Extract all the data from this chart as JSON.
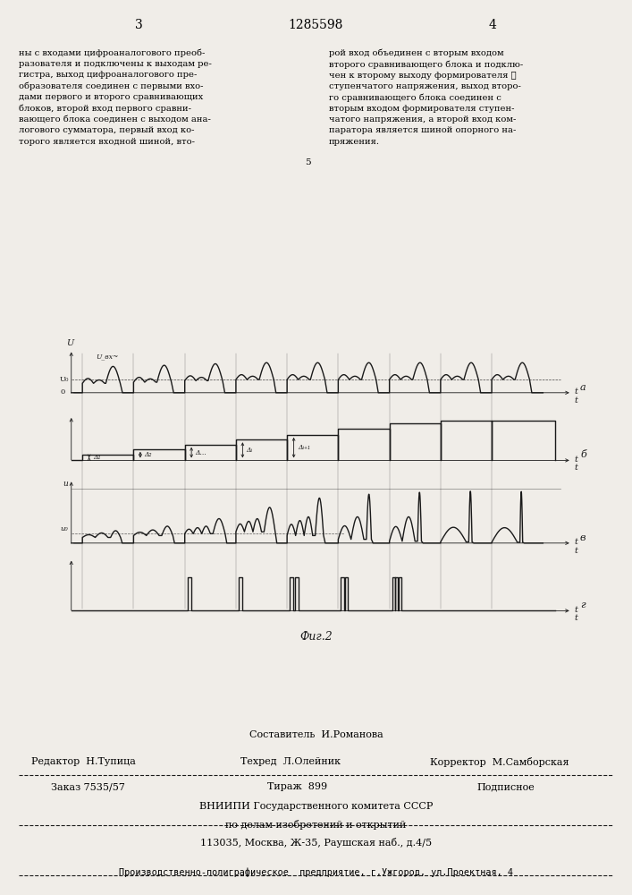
{
  "page_number_left": "3",
  "page_number_center": "1285598",
  "page_number_right": "4",
  "text_left": "ны с входами цифроаналогового преоб-\nразователя и подключены к выходам ре-\nгистра, выход цифроаналогового пре-\nобразователя соединен с первыми вхо-\nдами первого и второго сравнивающих\nблоков, второй вход первого сравни-\nвающего блока соединен с выходом ана-\nлогового сумматора, первый вход ко-\nторого является входной шиной, вто-",
  "text_right": "рой вход объединен с вторым входом\nвторого сравнивающего блока и подклю-\nчен к второму выходу формирователя ℓ\nступенчатого напряжения, выход второ-\nго сравнивающего блока соединен с\nвторым входом формирователя ступен-\nчатого напряжения, а второй вход ком-\nпаратора является шиной опорного на-\nпряжения.",
  "fig_caption": "Фиг.2",
  "footer_composer": "Составитель  И.Романова",
  "footer_editor": "Редактор  Н.Тупица",
  "footer_techred": "Техред  Л.Олейник",
  "footer_corrector": "Корректор  М.Самборская",
  "footer_order": "Заказ 7535/57",
  "footer_tirazh": "Тираж  899",
  "footer_podpisnoe": "Подписное",
  "footer_org1": "ВНИИПИ Государственного комитета СССР",
  "footer_org2": "по делам изобретений и открытий",
  "footer_org3": "113035, Москва, Ж-35, Раушская наб., д.4/5",
  "footer_prod": "Производственно-полиграфическое  предприятие, г.Ужгород, ул.Проектная, 4",
  "bg_color": "#f0ede8",
  "line_color": "#1a1a1a",
  "label_a": "а",
  "label_b": "б",
  "label_v": "в",
  "label_g": "г",
  "number_5": "5"
}
